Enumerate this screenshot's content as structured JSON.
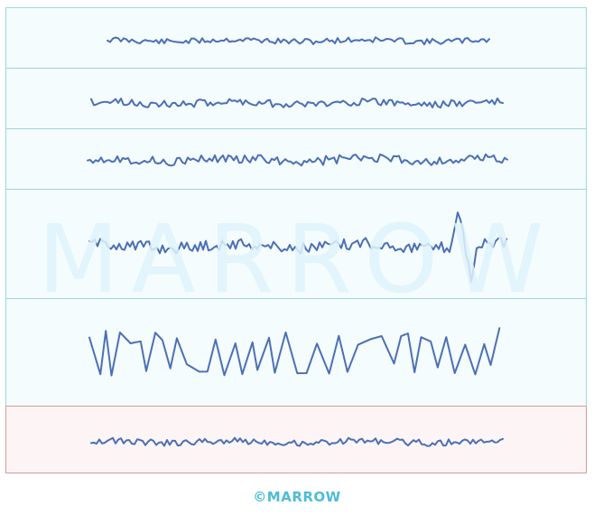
{
  "watermark": {
    "text": "MARROW"
  },
  "footer": {
    "copyright_symbol": "©",
    "brand": "MARROW"
  },
  "trace_color": "#4c6fb6",
  "rows": [
    {
      "id": "trace-1",
      "panel_color": "teal",
      "pattern": "low-amplitude-fast"
    },
    {
      "id": "trace-2",
      "panel_color": "teal",
      "pattern": "low-amplitude-fast"
    },
    {
      "id": "trace-3",
      "panel_color": "teal",
      "pattern": "low-amplitude-fast"
    },
    {
      "id": "trace-4",
      "panel_color": "teal",
      "pattern": "low-amplitude-with-spike"
    },
    {
      "id": "trace-5",
      "panel_color": "teal",
      "pattern": "high-amplitude-slow"
    },
    {
      "id": "trace-6",
      "panel_color": "red",
      "pattern": "low-amplitude-fast"
    }
  ]
}
